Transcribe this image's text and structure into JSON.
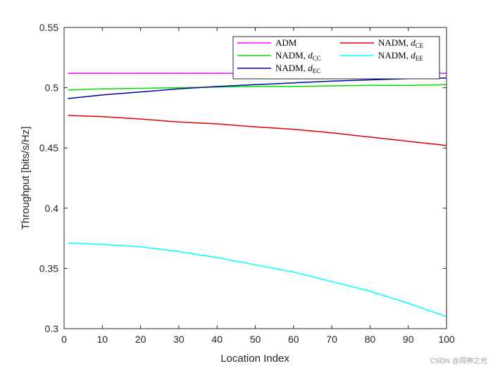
{
  "chart_data": {
    "type": "line",
    "title": "",
    "xlabel": "Location Index",
    "ylabel": "Throughput [bits/s/Hz]",
    "xlim": [
      0,
      100
    ],
    "ylim": [
      0.3,
      0.55
    ],
    "xticks": [
      0,
      10,
      20,
      30,
      40,
      50,
      60,
      70,
      80,
      90,
      100
    ],
    "yticks": [
      0.3,
      0.35,
      0.4,
      0.45,
      0.5,
      0.55
    ],
    "xtick_labels": [
      "0",
      "10",
      "20",
      "30",
      "40",
      "50",
      "60",
      "70",
      "80",
      "90",
      "100"
    ],
    "ytick_labels": [
      "0.3",
      "0.35",
      "0.4",
      "0.45",
      "0.5",
      "0.55"
    ],
    "grid": false,
    "legend_position": "top-right",
    "x": [
      1,
      10,
      20,
      30,
      40,
      50,
      60,
      70,
      80,
      90,
      100
    ],
    "series": [
      {
        "name": "ADM",
        "color": "#FF00FF",
        "values": [
          0.512,
          0.512,
          0.512,
          0.512,
          0.512,
          0.512,
          0.512,
          0.512,
          0.512,
          0.512,
          0.512
        ]
      },
      {
        "name": "NADM, d_CC",
        "legend_main": "NADM, d",
        "legend_sub": "CC",
        "color": "#00DD00",
        "values": [
          0.498,
          0.499,
          0.4995,
          0.5,
          0.5005,
          0.501,
          0.501,
          0.5015,
          0.502,
          0.502,
          0.5025
        ]
      },
      {
        "name": "NADM, d_EC",
        "legend_main": "NADM, d",
        "legend_sub": "EC",
        "color": "#0000AA",
        "values": [
          0.491,
          0.494,
          0.4965,
          0.499,
          0.501,
          0.5025,
          0.504,
          0.5055,
          0.5065,
          0.5075,
          0.508
        ]
      },
      {
        "name": "NADM, d_CE",
        "legend_main": "NADM, d",
        "legend_sub": "CE",
        "color": "#DD0000",
        "values": [
          0.477,
          0.476,
          0.474,
          0.4715,
          0.47,
          0.4675,
          0.4655,
          0.4625,
          0.459,
          0.4555,
          0.452
        ]
      },
      {
        "name": "NADM, d_EE",
        "legend_main": "NADM, d",
        "legend_sub": "EE",
        "color": "#00FFFF",
        "values": [
          0.371,
          0.37,
          0.368,
          0.364,
          0.359,
          0.353,
          0.347,
          0.339,
          0.331,
          0.321,
          0.31
        ]
      }
    ],
    "legend_layout": [
      [
        0,
        3
      ],
      [
        1,
        4
      ],
      [
        2
      ]
    ]
  },
  "watermark": "CSDN @闯神之光"
}
